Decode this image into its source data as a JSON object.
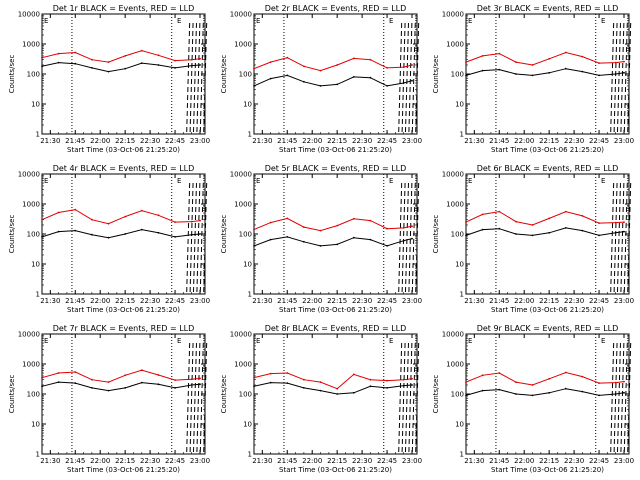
{
  "colors": {
    "events": "#000000",
    "lld": "#e00000",
    "axis": "#000000"
  },
  "x_ticks": [
    "21:30",
    "21:45",
    "22:00",
    "22:15",
    "22:30",
    "22:45",
    "23:00"
  ],
  "y_ticks": [
    "1",
    "10",
    "100",
    "1000",
    "10000"
  ],
  "x_label": "Start Time (03-Oct-06 21:25:20)",
  "y_label": "Counts/sec",
  "chart_data": [
    {
      "type": "line",
      "title": "Det 1r BLACK = Events, RED = LLD",
      "corner_marks": [
        "E",
        "E"
      ],
      "xlim": [
        "21:25",
        "23:03"
      ],
      "ylim": [
        1,
        10000
      ],
      "yscale": "log",
      "dotted_vlines": [
        "21:43",
        "22:43"
      ],
      "series": [
        {
          "name": "Events",
          "x": [
            "21:25",
            "21:35",
            "21:45",
            "21:55",
            "22:05",
            "22:15",
            "22:25",
            "22:35",
            "22:45",
            "22:55",
            "23:00"
          ],
          "values": [
            180,
            240,
            220,
            160,
            120,
            150,
            230,
            200,
            160,
            190,
            200
          ]
        },
        {
          "name": "LLD",
          "x": [
            "21:25",
            "21:35",
            "21:45",
            "21:55",
            "22:05",
            "22:15",
            "22:25",
            "22:35",
            "22:45",
            "22:55",
            "23:00"
          ],
          "values": [
            350,
            480,
            520,
            300,
            250,
            400,
            600,
            420,
            280,
            300,
            320
          ]
        }
      ]
    },
    {
      "type": "line",
      "title": "Det 2r BLACK = Events, RED = LLD",
      "corner_marks": [
        "E",
        "E"
      ],
      "xlim": [
        "21:25",
        "23:03"
      ],
      "ylim": [
        1,
        10000
      ],
      "yscale": "log",
      "dotted_vlines": [
        "21:43",
        "22:43"
      ],
      "series": [
        {
          "name": "Events",
          "x": [
            "21:25",
            "21:35",
            "21:45",
            "21:55",
            "22:05",
            "22:15",
            "22:25",
            "22:35",
            "22:45",
            "22:55",
            "23:00"
          ],
          "values": [
            40,
            70,
            90,
            55,
            40,
            45,
            80,
            75,
            40,
            50,
            60
          ]
        },
        {
          "name": "LLD",
          "x": [
            "21:25",
            "21:35",
            "21:45",
            "21:55",
            "22:05",
            "22:15",
            "22:25",
            "22:35",
            "22:45",
            "22:55",
            "23:00"
          ],
          "values": [
            150,
            250,
            350,
            180,
            130,
            200,
            330,
            300,
            160,
            170,
            200
          ]
        }
      ]
    },
    {
      "type": "line",
      "title": "Det 3r BLACK = Events, RED = LLD",
      "corner_marks": [
        "E",
        "E"
      ],
      "xlim": [
        "21:25",
        "23:03"
      ],
      "ylim": [
        1,
        10000
      ],
      "yscale": "log",
      "dotted_vlines": [
        "21:43",
        "22:43"
      ],
      "series": [
        {
          "name": "Events",
          "x": [
            "21:25",
            "21:35",
            "21:45",
            "21:55",
            "22:05",
            "22:15",
            "22:25",
            "22:35",
            "22:45",
            "22:55",
            "23:00"
          ],
          "values": [
            90,
            130,
            140,
            100,
            90,
            110,
            150,
            120,
            90,
            100,
            110
          ]
        },
        {
          "name": "LLD",
          "x": [
            "21:25",
            "21:35",
            "21:45",
            "21:55",
            "22:05",
            "22:15",
            "22:25",
            "22:35",
            "22:45",
            "22:55",
            "23:00"
          ],
          "values": [
            250,
            400,
            480,
            250,
            200,
            320,
            520,
            380,
            230,
            240,
            260
          ]
        }
      ]
    },
    {
      "type": "line",
      "title": "Det 4r BLACK = Events, RED = LLD",
      "corner_marks": [
        "E",
        "E"
      ],
      "xlim": [
        "21:25",
        "23:03"
      ],
      "ylim": [
        1,
        10000
      ],
      "yscale": "log",
      "dotted_vlines": [
        "21:43",
        "22:43"
      ],
      "series": [
        {
          "name": "Events",
          "x": [
            "21:25",
            "21:35",
            "21:45",
            "21:55",
            "22:05",
            "22:15",
            "22:25",
            "22:35",
            "22:45",
            "22:55",
            "23:00"
          ],
          "values": [
            80,
            120,
            130,
            95,
            75,
            100,
            140,
            110,
            80,
            95,
            100
          ]
        },
        {
          "name": "LLD",
          "x": [
            "21:25",
            "21:35",
            "21:45",
            "21:55",
            "22:05",
            "22:15",
            "22:25",
            "22:35",
            "22:45",
            "22:55",
            "23:00"
          ],
          "values": [
            300,
            520,
            650,
            300,
            220,
            380,
            600,
            420,
            250,
            260,
            280
          ]
        }
      ]
    },
    {
      "type": "line",
      "title": "Det 5r BLACK = Events, RED = LLD",
      "corner_marks": [
        "E",
        "E"
      ],
      "xlim": [
        "21:25",
        "23:03"
      ],
      "ylim": [
        1,
        10000
      ],
      "yscale": "log",
      "dotted_vlines": [
        "21:43",
        "22:43"
      ],
      "series": [
        {
          "name": "Events",
          "x": [
            "21:25",
            "21:35",
            "21:45",
            "21:55",
            "22:05",
            "22:15",
            "22:25",
            "22:35",
            "22:45",
            "22:55",
            "23:00"
          ],
          "values": [
            40,
            65,
            80,
            55,
            40,
            45,
            75,
            65,
            40,
            60,
            70
          ]
        },
        {
          "name": "LLD",
          "x": [
            "21:25",
            "21:35",
            "21:45",
            "21:55",
            "22:05",
            "22:15",
            "22:25",
            "22:35",
            "22:45",
            "22:55",
            "23:00"
          ],
          "values": [
            140,
            240,
            330,
            170,
            130,
            190,
            320,
            280,
            150,
            160,
            180
          ]
        }
      ]
    },
    {
      "type": "line",
      "title": "Det 6r BLACK = Events, RED = LLD",
      "corner_marks": [
        "E",
        "E"
      ],
      "xlim": [
        "21:25",
        "23:03"
      ],
      "ylim": [
        1,
        10000
      ],
      "yscale": "log",
      "dotted_vlines": [
        "21:43",
        "22:43"
      ],
      "series": [
        {
          "name": "Events",
          "x": [
            "21:25",
            "21:35",
            "21:45",
            "21:55",
            "22:05",
            "22:15",
            "22:25",
            "22:35",
            "22:45",
            "22:55",
            "23:00"
          ],
          "values": [
            90,
            140,
            150,
            100,
            90,
            110,
            160,
            130,
            90,
            110,
            120
          ]
        },
        {
          "name": "LLD",
          "x": [
            "21:25",
            "21:35",
            "21:45",
            "21:55",
            "22:05",
            "22:15",
            "22:25",
            "22:35",
            "22:45",
            "22:55",
            "23:00"
          ],
          "values": [
            250,
            450,
            560,
            260,
            200,
            330,
            560,
            400,
            230,
            240,
            250
          ]
        }
      ]
    },
    {
      "type": "line",
      "title": "Det 7r BLACK = Events, RED = LLD",
      "corner_marks": [
        "E",
        "E"
      ],
      "xlim": [
        "21:25",
        "23:03"
      ],
      "ylim": [
        1,
        10000
      ],
      "yscale": "log",
      "dotted_vlines": [
        "21:43",
        "22:43"
      ],
      "series": [
        {
          "name": "Events",
          "x": [
            "21:25",
            "21:35",
            "21:45",
            "21:55",
            "22:05",
            "22:15",
            "22:25",
            "22:35",
            "22:45",
            "22:55",
            "23:00"
          ],
          "values": [
            180,
            250,
            230,
            160,
            130,
            160,
            240,
            210,
            160,
            200,
            210
          ]
        },
        {
          "name": "LLD",
          "x": [
            "21:25",
            "21:35",
            "21:45",
            "21:55",
            "22:05",
            "22:15",
            "22:25",
            "22:35",
            "22:45",
            "22:55",
            "23:00"
          ],
          "values": [
            350,
            500,
            540,
            300,
            250,
            420,
            620,
            430,
            290,
            310,
            330
          ]
        }
      ]
    },
    {
      "type": "line",
      "title": "Det 8r BLACK = Events, RED = LLD",
      "corner_marks": [
        "E",
        "E"
      ],
      "xlim": [
        "21:25",
        "23:03"
      ],
      "ylim": [
        1,
        10000
      ],
      "yscale": "log",
      "dotted_vlines": [
        "21:43",
        "22:43"
      ],
      "series": [
        {
          "name": "Events",
          "x": [
            "21:25",
            "21:35",
            "21:45",
            "21:55",
            "22:05",
            "22:15",
            "22:25",
            "22:35",
            "22:45",
            "22:55",
            "23:00"
          ],
          "values": [
            180,
            240,
            230,
            160,
            130,
            100,
            110,
            180,
            160,
            190,
            200
          ]
        },
        {
          "name": "LLD",
          "x": [
            "21:25",
            "21:35",
            "21:45",
            "21:55",
            "22:05",
            "22:15",
            "22:25",
            "22:35",
            "22:45",
            "22:55",
            "23:00"
          ],
          "values": [
            350,
            480,
            500,
            300,
            250,
            150,
            450,
            300,
            280,
            300,
            320
          ]
        }
      ]
    },
    {
      "type": "line",
      "title": "Det 9r BLACK = Events, RED = LLD",
      "corner_marks": [
        "E",
        "E"
      ],
      "xlim": [
        "21:25",
        "23:03"
      ],
      "ylim": [
        1,
        10000
      ],
      "yscale": "log",
      "dotted_vlines": [
        "21:43",
        "22:43"
      ],
      "series": [
        {
          "name": "Events",
          "x": [
            "21:25",
            "21:35",
            "21:45",
            "21:55",
            "22:05",
            "22:15",
            "22:25",
            "22:35",
            "22:45",
            "22:55",
            "23:00"
          ],
          "values": [
            90,
            130,
            140,
            100,
            90,
            110,
            150,
            120,
            90,
            100,
            110
          ]
        },
        {
          "name": "LLD",
          "x": [
            "21:25",
            "21:35",
            "21:45",
            "21:55",
            "22:05",
            "22:15",
            "22:25",
            "22:35",
            "22:45",
            "22:55",
            "23:00"
          ],
          "values": [
            250,
            420,
            500,
            250,
            200,
            320,
            520,
            380,
            230,
            240,
            260
          ]
        }
      ]
    }
  ]
}
